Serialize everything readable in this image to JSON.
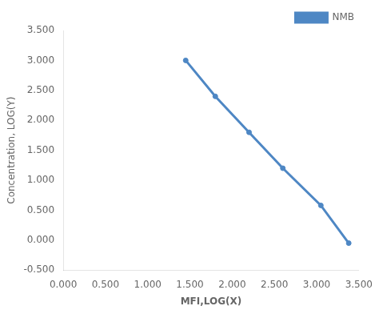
{
  "chart_data": {
    "type": "line",
    "x": [
      1.45,
      1.8,
      2.2,
      2.6,
      3.05,
      3.38
    ],
    "series": [
      {
        "name": "NMB",
        "color": "#4E87C4",
        "marker": "circle",
        "values": [
          3.0,
          2.4,
          1.8,
          1.2,
          0.58,
          -0.05
        ]
      }
    ],
    "xlabel": "MFI,LOG(X)",
    "ylabel": "Concentration, LOG(Y)",
    "xlim": [
      0.0,
      3.5
    ],
    "ylim": [
      -0.5,
      3.5
    ],
    "xticks": [
      {
        "value": 0.0,
        "label": "0.000"
      },
      {
        "value": 0.5,
        "label": "0.500"
      },
      {
        "value": 1.0,
        "label": "1.000"
      },
      {
        "value": 1.5,
        "label": "1.500"
      },
      {
        "value": 2.0,
        "label": "2.000"
      },
      {
        "value": 2.5,
        "label": "2.500"
      },
      {
        "value": 3.0,
        "label": "3.000"
      },
      {
        "value": 3.5,
        "label": "3.500"
      }
    ],
    "yticks": [
      {
        "value": -0.5,
        "label": "-0.500"
      },
      {
        "value": 0.0,
        "label": "0.000"
      },
      {
        "value": 0.5,
        "label": "0.500"
      },
      {
        "value": 1.0,
        "label": "1.000"
      },
      {
        "value": 1.5,
        "label": "1.500"
      },
      {
        "value": 2.0,
        "label": "2.000"
      },
      {
        "value": 2.5,
        "label": "2.500"
      },
      {
        "value": 3.0,
        "label": "3.000"
      },
      {
        "value": 3.5,
        "label": "3.500"
      }
    ],
    "grid": false,
    "legend": "top-right"
  }
}
